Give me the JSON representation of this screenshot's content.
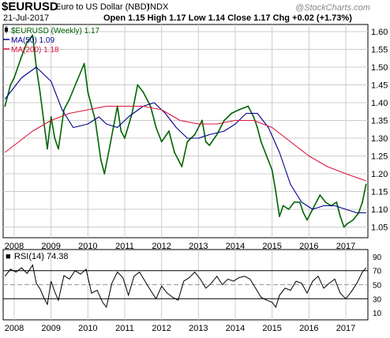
{
  "header": {
    "symbol": "$EURUSD",
    "description": "Euro to US Dollar (NBD)",
    "exchange": "INDX",
    "date": "21-Jul-2017",
    "ohlc": "Open 1.15  High 1.17  Low 1.14  Close 1.17  Chg +0.02 (+1.73%)",
    "brand": "@StockCharts.com"
  },
  "colors": {
    "price": "#006400",
    "price_down": "#ff0000",
    "ma50": "#00008b",
    "ma200": "#dc143c",
    "grid": "#cccccc",
    "rsi": "#000000",
    "rsi_fill": "#808080"
  },
  "chart_data": [
    {
      "type": "line",
      "legend": [
        {
          "label": "$EURUSD (Weekly) 1.17",
          "color": "#006400"
        },
        {
          "label": "MA(50) 1.09",
          "color": "#00008b"
        },
        {
          "label": "MA(200) 1.18",
          "color": "#dc143c"
        }
      ],
      "x_ticks": [
        "2008",
        "2009",
        "2010",
        "2011",
        "2012",
        "2013",
        "2014",
        "2015",
        "2016",
        "2017"
      ],
      "y_ticks": [
        "1.05",
        "1.10",
        "1.15",
        "1.20",
        "1.25",
        "1.30",
        "1.35",
        "1.40",
        "1.45",
        "1.50",
        "1.55",
        "1.60"
      ],
      "ylim": [
        1.02,
        1.62
      ],
      "xlim": [
        2007.7,
        2017.6
      ],
      "series": [
        {
          "name": "$EURUSD (Weekly)",
          "x": [
            2007.75,
            2007.9,
            2008.0,
            2008.2,
            2008.35,
            2008.5,
            2008.6,
            2008.7,
            2008.8,
            2008.9,
            2009.0,
            2009.1,
            2009.2,
            2009.35,
            2009.5,
            2009.7,
            2009.9,
            2010.0,
            2010.2,
            2010.35,
            2010.45,
            2010.6,
            2010.8,
            2010.9,
            2011.0,
            2011.2,
            2011.35,
            2011.5,
            2011.7,
            2011.85,
            2012.0,
            2012.2,
            2012.35,
            2012.45,
            2012.55,
            2012.7,
            2012.9,
            2013.1,
            2013.2,
            2013.3,
            2013.5,
            2013.7,
            2013.9,
            2014.1,
            2014.35,
            2014.5,
            2014.6,
            2014.7,
            2014.85,
            2015.0,
            2015.1,
            2015.2,
            2015.3,
            2015.45,
            2015.6,
            2015.75,
            2015.85,
            2015.95,
            2016.1,
            2016.3,
            2016.45,
            2016.6,
            2016.75,
            2016.85,
            2016.95,
            2017.05,
            2017.2,
            2017.35,
            2017.45,
            2017.55
          ],
          "values": [
            1.39,
            1.45,
            1.47,
            1.53,
            1.57,
            1.59,
            1.5,
            1.43,
            1.35,
            1.27,
            1.36,
            1.3,
            1.27,
            1.38,
            1.41,
            1.46,
            1.51,
            1.43,
            1.35,
            1.24,
            1.2,
            1.28,
            1.39,
            1.32,
            1.3,
            1.37,
            1.45,
            1.43,
            1.39,
            1.33,
            1.29,
            1.32,
            1.26,
            1.24,
            1.22,
            1.29,
            1.31,
            1.35,
            1.29,
            1.28,
            1.31,
            1.35,
            1.37,
            1.38,
            1.39,
            1.36,
            1.33,
            1.29,
            1.25,
            1.21,
            1.15,
            1.08,
            1.11,
            1.1,
            1.12,
            1.12,
            1.09,
            1.07,
            1.1,
            1.14,
            1.12,
            1.11,
            1.12,
            1.08,
            1.05,
            1.06,
            1.07,
            1.09,
            1.12,
            1.17
          ]
        },
        {
          "name": "MA(50)",
          "x": [
            2007.75,
            2008.2,
            2008.6,
            2009.0,
            2009.3,
            2009.6,
            2010.0,
            2010.3,
            2010.5,
            2010.8,
            2011.1,
            2011.5,
            2011.8,
            2012.1,
            2012.4,
            2012.7,
            2013.0,
            2013.3,
            2013.7,
            2014.0,
            2014.3,
            2014.6,
            2014.9,
            2015.2,
            2015.5,
            2015.8,
            2016.1,
            2016.4,
            2016.7,
            2017.0,
            2017.3,
            2017.55
          ],
          "values": [
            1.41,
            1.47,
            1.5,
            1.46,
            1.38,
            1.33,
            1.34,
            1.36,
            1.34,
            1.33,
            1.36,
            1.39,
            1.4,
            1.37,
            1.33,
            1.3,
            1.3,
            1.31,
            1.32,
            1.34,
            1.37,
            1.37,
            1.33,
            1.26,
            1.17,
            1.12,
            1.1,
            1.11,
            1.11,
            1.1,
            1.09,
            1.09
          ]
        },
        {
          "name": "MA(200)",
          "x": [
            2007.75,
            2008.0,
            2008.5,
            2009.0,
            2009.5,
            2010.0,
            2010.5,
            2011.0,
            2011.5,
            2012.0,
            2012.5,
            2013.0,
            2013.5,
            2014.0,
            2014.5,
            2015.0,
            2015.5,
            2016.0,
            2016.5,
            2017.0,
            2017.55
          ],
          "values": [
            1.26,
            1.28,
            1.32,
            1.35,
            1.37,
            1.38,
            1.39,
            1.39,
            1.39,
            1.38,
            1.35,
            1.34,
            1.34,
            1.35,
            1.35,
            1.33,
            1.29,
            1.25,
            1.22,
            1.2,
            1.18
          ]
        }
      ]
    },
    {
      "type": "line",
      "title": "RSI(14) 74.38",
      "x_ticks": [
        "2008",
        "2009",
        "2010",
        "2011",
        "2012",
        "2013",
        "2014",
        "2015",
        "2016",
        "2017"
      ],
      "y_ticks": [
        "10",
        "30",
        "50",
        "70",
        "90"
      ],
      "ylim": [
        0,
        100
      ],
      "xlim": [
        2007.7,
        2017.6
      ],
      "reference_lines": [
        30,
        70
      ],
      "series": [
        {
          "name": "RSI(14)",
          "x": [
            2007.75,
            2007.9,
            2008.05,
            2008.2,
            2008.35,
            2008.5,
            2008.6,
            2008.7,
            2008.8,
            2008.9,
            2009.0,
            2009.1,
            2009.2,
            2009.35,
            2009.5,
            2009.65,
            2009.8,
            2009.95,
            2010.1,
            2010.25,
            2010.4,
            2010.5,
            2010.65,
            2010.8,
            2010.95,
            2011.1,
            2011.25,
            2011.4,
            2011.55,
            2011.7,
            2011.85,
            2012.0,
            2012.15,
            2012.3,
            2012.45,
            2012.6,
            2012.75,
            2012.9,
            2013.05,
            2013.2,
            2013.35,
            2013.5,
            2013.65,
            2013.8,
            2013.95,
            2014.1,
            2014.25,
            2014.4,
            2014.55,
            2014.7,
            2014.85,
            2015.0,
            2015.1,
            2015.2,
            2015.35,
            2015.5,
            2015.65,
            2015.8,
            2015.95,
            2016.1,
            2016.25,
            2016.4,
            2016.55,
            2016.7,
            2016.85,
            2017.0,
            2017.15,
            2017.3,
            2017.45,
            2017.55
          ],
          "values": [
            62,
            72,
            68,
            74,
            66,
            78,
            52,
            44,
            32,
            22,
            55,
            40,
            28,
            63,
            58,
            70,
            65,
            72,
            38,
            42,
            25,
            18,
            52,
            68,
            60,
            35,
            62,
            68,
            55,
            42,
            30,
            48,
            38,
            32,
            28,
            55,
            60,
            68,
            58,
            45,
            52,
            62,
            50,
            58,
            55,
            60,
            62,
            58,
            45,
            32,
            28,
            25,
            18,
            35,
            45,
            42,
            55,
            52,
            38,
            55,
            62,
            45,
            52,
            58,
            38,
            30,
            40,
            52,
            68,
            74
          ]
        }
      ]
    }
  ]
}
